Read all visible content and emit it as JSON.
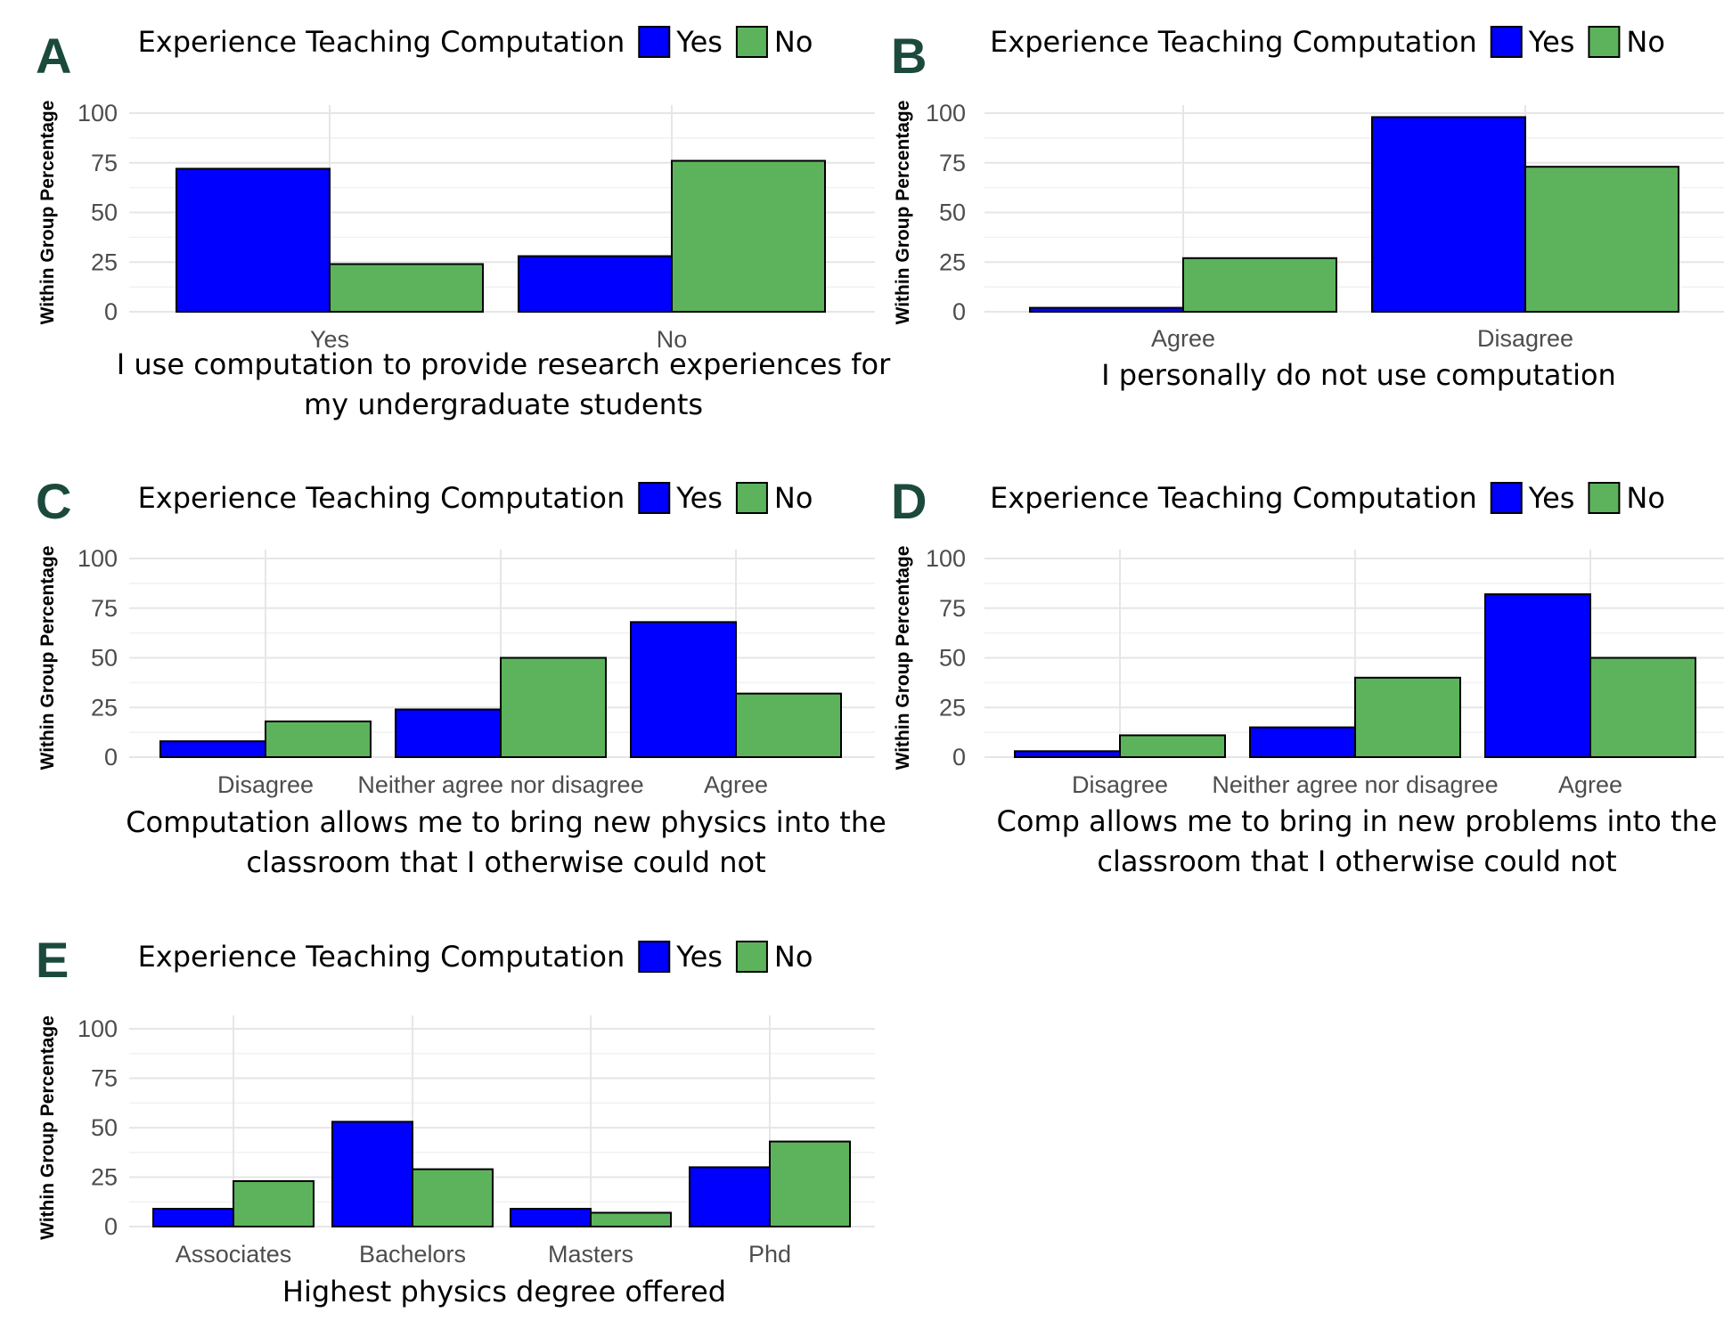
{
  "colors": {
    "yes": "#0000ff",
    "no": "#5cb35c",
    "letter": "#1b4a3c"
  },
  "chart_data": [
    {
      "panel": "A",
      "type": "bar",
      "legend_title": "Experience Teaching Computation",
      "categories": [
        "Yes",
        "No"
      ],
      "series": [
        {
          "name": "Yes",
          "values": [
            72,
            28
          ]
        },
        {
          "name": "No",
          "values": [
            24,
            76
          ]
        }
      ],
      "xlabel": [
        "I use computation to provide research experiences for",
        "my undergraduate students"
      ],
      "ylabel": "Within Group Percentage",
      "yticks": [
        "0",
        "25",
        "50",
        "75",
        "100"
      ],
      "ylim": [
        0,
        100
      ]
    },
    {
      "panel": "B",
      "type": "bar",
      "legend_title": "Experience Teaching Computation",
      "categories": [
        "Agree",
        "Disagree"
      ],
      "series": [
        {
          "name": "Yes",
          "values": [
            2,
            98
          ]
        },
        {
          "name": "No",
          "values": [
            27,
            73
          ]
        }
      ],
      "xlabel": [
        "I personally do not use computation"
      ],
      "ylabel": "Within Group Percentage",
      "yticks": [
        "0",
        "25",
        "50",
        "75",
        "100"
      ],
      "ylim": [
        0,
        100
      ]
    },
    {
      "panel": "C",
      "type": "bar",
      "legend_title": "Experience Teaching Computation",
      "categories": [
        "Disagree",
        "Neither agree nor disagree",
        "Agree"
      ],
      "series": [
        {
          "name": "Yes",
          "values": [
            8,
            24,
            68
          ]
        },
        {
          "name": "No",
          "values": [
            18,
            50,
            32
          ]
        }
      ],
      "xlabel": [
        "Computation allows me to bring new physics into the",
        "classroom that I otherwise could not"
      ],
      "ylabel": "Within Group Percentage",
      "yticks": [
        "0",
        "25",
        "50",
        "75",
        "100"
      ],
      "ylim": [
        0,
        100
      ]
    },
    {
      "panel": "D",
      "type": "bar",
      "legend_title": "Experience Teaching Computation",
      "categories": [
        "Disagree",
        "Neither agree nor disagree",
        "Agree"
      ],
      "series": [
        {
          "name": "Yes",
          "values": [
            3,
            15,
            82
          ]
        },
        {
          "name": "No",
          "values": [
            11,
            40,
            50
          ]
        }
      ],
      "xlabel": [
        "Comp allows me to bring in new problems into the",
        "classroom that I otherwise could not"
      ],
      "ylabel": "Within Group Percentage",
      "yticks": [
        "0",
        "25",
        "50",
        "75",
        "100"
      ],
      "ylim": [
        0,
        100
      ]
    },
    {
      "panel": "E",
      "type": "bar",
      "legend_title": "Experience Teaching Computation",
      "categories": [
        "Associates",
        "Bachelors",
        "Masters",
        "Phd"
      ],
      "series": [
        {
          "name": "Yes",
          "values": [
            9,
            53,
            9,
            30
          ]
        },
        {
          "name": "No",
          "values": [
            23,
            29,
            7,
            43
          ]
        }
      ],
      "xlabel": [
        "Highest physics degree offered"
      ],
      "ylabel": "Within Group Percentage",
      "yticks": [
        "0",
        "25",
        "50",
        "75",
        "100"
      ],
      "ylim": [
        0,
        100
      ]
    }
  ]
}
